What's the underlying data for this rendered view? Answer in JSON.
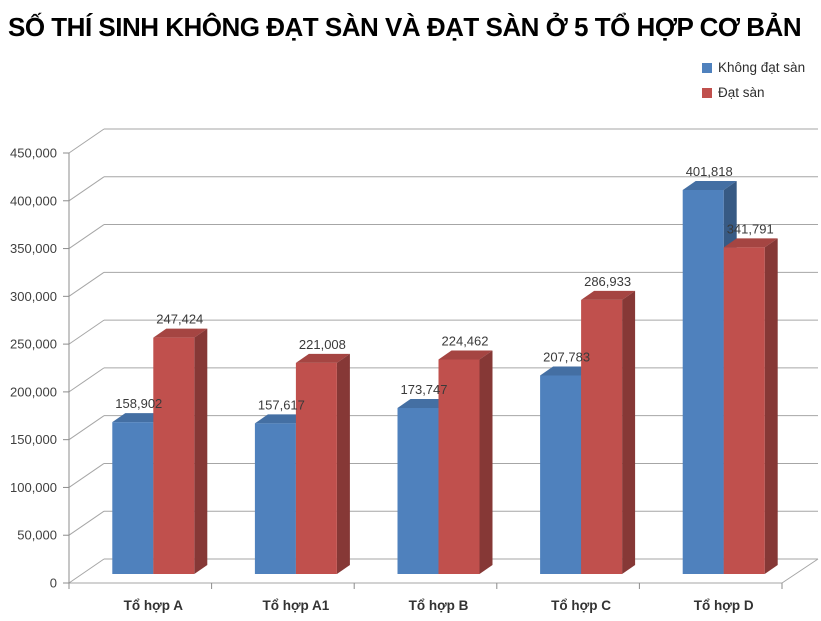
{
  "title": "SỐ THÍ SINH KHÔNG ĐẠT SÀN VÀ ĐẠT SÀN Ở 5 TỔ HỢP CƠ BẢN",
  "chart_data": {
    "type": "bar",
    "style": "3d-clustered-column",
    "title": "SỐ THÍ SINH KHÔNG ĐẠT SÀN VÀ ĐẠT SÀN Ở 5 TỔ HỢP CƠ BẢN",
    "categories": [
      "Tổ hợp A",
      "Tổ hợp A1",
      "Tổ hợp B",
      "Tổ hợp C",
      "Tổ hợp D"
    ],
    "series": [
      {
        "name": "Không đạt sàn",
        "color": "#4F81BD",
        "values": [
          158902,
          157617,
          173747,
          207783,
          401818
        ],
        "labels": [
          "158,902",
          "157,617",
          "173,747",
          "207,783",
          "401,818"
        ]
      },
      {
        "name": "Đạt sàn",
        "color": "#C0504D",
        "values": [
          247424,
          221008,
          224462,
          286933,
          341791
        ],
        "labels": [
          "247,424",
          "221,008",
          "224,462",
          "286,933",
          "341,791"
        ]
      }
    ],
    "xlabel": "",
    "ylabel": "",
    "ylim": [
      0,
      450000
    ],
    "ytick_step": 50000,
    "y_ticks": [
      "0",
      "50,000",
      "100,000",
      "150,000",
      "200,000",
      "250,000",
      "300,000",
      "350,000",
      "400,000",
      "450,000"
    ],
    "grid": true,
    "legend_position": "top-right",
    "colors": {
      "gridline": "#A6A6A6",
      "axis": "#8C8C8C",
      "tick_text": "#404040",
      "category_text": "#333333",
      "data_label_text": "#3a3a3a"
    }
  }
}
